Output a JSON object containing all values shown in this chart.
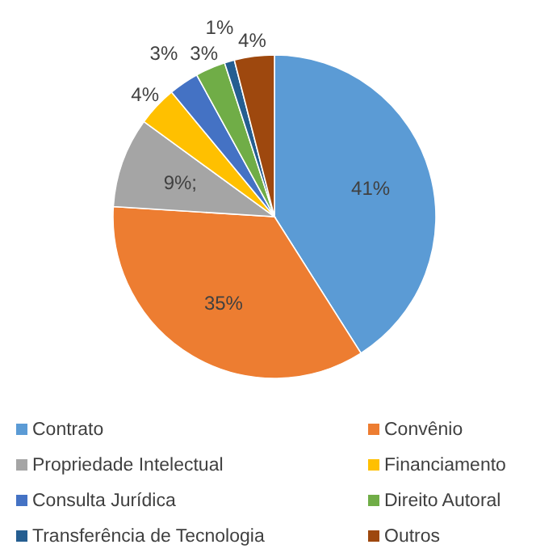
{
  "chart_data": {
    "type": "pie",
    "categories": [
      "Contrato",
      "Convênio",
      "Propriedade Intelectual",
      "Financiamento",
      "Consulta Jurídica",
      "Direito Autoral",
      "Transferência de Tecnologia",
      "Outros"
    ],
    "values": [
      41,
      35,
      9,
      4,
      3,
      3,
      1,
      4
    ],
    "colors": [
      "#5b9bd5",
      "#ed7d31",
      "#a5a5a5",
      "#ffc000",
      "#4472c4",
      "#70ad47",
      "#255e91",
      "#9e480e"
    ],
    "value_labels": [
      "41%",
      "35%",
      "9%;",
      "4%",
      "3%",
      "3%",
      "1%",
      "4%"
    ],
    "legend": "bottom"
  }
}
